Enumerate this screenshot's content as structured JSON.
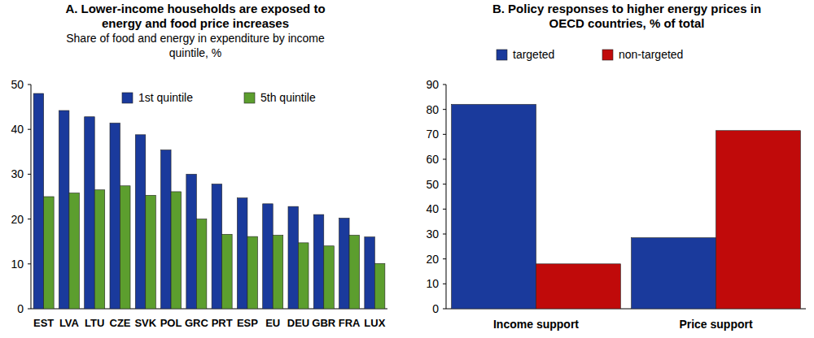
{
  "chart_data": [
    {
      "type": "bar",
      "title": [
        "A. Lower-income households are exposed to",
        "energy and food price increases"
      ],
      "subtitle": [
        "Share of food and energy in expenditure by income",
        "quintile, %"
      ],
      "categories": [
        "EST",
        "LVA",
        "LTU",
        "CZE",
        "SVK",
        "POL",
        "GRC",
        "PRT",
        "ESP",
        "EU",
        "DEU",
        "GBR",
        "FRA",
        "LUX"
      ],
      "series": [
        {
          "name": "1st quintile",
          "color": "#1a3a9c",
          "values": [
            48,
            44.2,
            42.8,
            41.4,
            38.8,
            35.4,
            30,
            27.8,
            24.7,
            23.4,
            22.8,
            21,
            20.2,
            16
          ]
        },
        {
          "name": "5th quintile",
          "color": "#5c9e2e",
          "values": [
            25,
            25.8,
            26.5,
            27.4,
            25.3,
            26.1,
            20,
            16.6,
            16.1,
            16.4,
            14.7,
            14,
            16.4,
            10.1
          ]
        }
      ],
      "ylim": [
        0,
        50
      ],
      "yticks": [
        0,
        10,
        20,
        30,
        40,
        50
      ],
      "grid": false,
      "legend": "top"
    },
    {
      "type": "bar",
      "title": [
        "B. Policy responses to higher energy prices in",
        "OECD countries, % of total"
      ],
      "categories": [
        "Income support",
        "Price support"
      ],
      "series": [
        {
          "name": "targeted",
          "color": "#1a3a9c",
          "values": [
            82,
            28.5
          ]
        },
        {
          "name": "non-targeted",
          "color": "#c00a0a",
          "values": [
            18,
            71.5
          ]
        }
      ],
      "ylim": [
        0,
        90
      ],
      "yticks": [
        0,
        10,
        20,
        30,
        40,
        50,
        60,
        70,
        80,
        90
      ],
      "grid": false,
      "legend": "top"
    }
  ]
}
